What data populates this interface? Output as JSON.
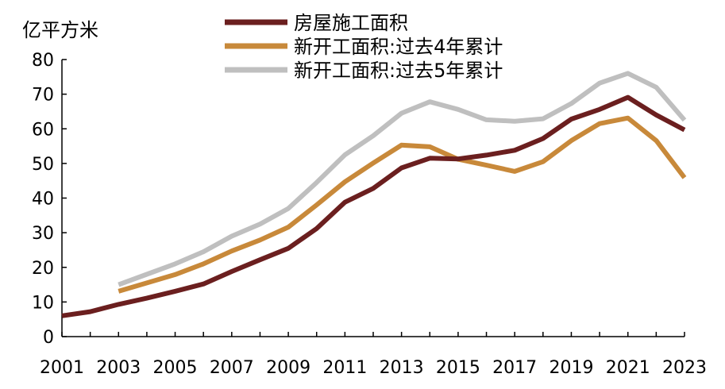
{
  "chart_data": {
    "type": "line",
    "unit_label": "亿平方米",
    "x": [
      2001,
      2002,
      2003,
      2004,
      2005,
      2006,
      2007,
      2008,
      2009,
      2010,
      2011,
      2012,
      2013,
      2014,
      2015,
      2016,
      2017,
      2018,
      2019,
      2020,
      2021,
      2022,
      2023
    ],
    "x_ticks": [
      "2001",
      "2003",
      "2005",
      "2007",
      "2009",
      "2011",
      "2013",
      "2015",
      "2017",
      "2019",
      "2021",
      "2023"
    ],
    "y_ticks": [
      "0",
      "10",
      "20",
      "30",
      "40",
      "50",
      "60",
      "70",
      "80"
    ],
    "ylim": [
      0,
      80
    ],
    "grid": false,
    "legend_position": "top-right",
    "series": [
      {
        "name": "房屋施工面积",
        "color": "#6b1f1f",
        "values": [
          6.0,
          7.2,
          9.3,
          11.1,
          13.1,
          15.2,
          18.8,
          22.2,
          25.5,
          31.2,
          38.8,
          42.8,
          48.7,
          51.5,
          51.3,
          52.4,
          53.8,
          57.2,
          62.8,
          65.6,
          69.1,
          64.0,
          59.7
        ]
      },
      {
        "name": "新开工面积:过去4年累计",
        "color": "#c8893a",
        "values": [
          null,
          null,
          13.1,
          15.5,
          17.9,
          21.0,
          24.7,
          27.9,
          31.6,
          38.0,
          44.7,
          50.1,
          55.3,
          54.8,
          51.2,
          49.5,
          47.7,
          50.5,
          56.6,
          61.5,
          63.1,
          56.6,
          45.9
        ]
      },
      {
        "name": "新开工面积:过去5年累计",
        "color": "#bfbfbf",
        "values": [
          null,
          null,
          15.0,
          18.0,
          21.0,
          24.5,
          29.0,
          32.5,
          37.0,
          44.5,
          52.5,
          58.0,
          64.5,
          67.8,
          65.6,
          62.6,
          62.2,
          62.9,
          67.3,
          73.2,
          76.0,
          72.0,
          62.5
        ]
      }
    ]
  }
}
